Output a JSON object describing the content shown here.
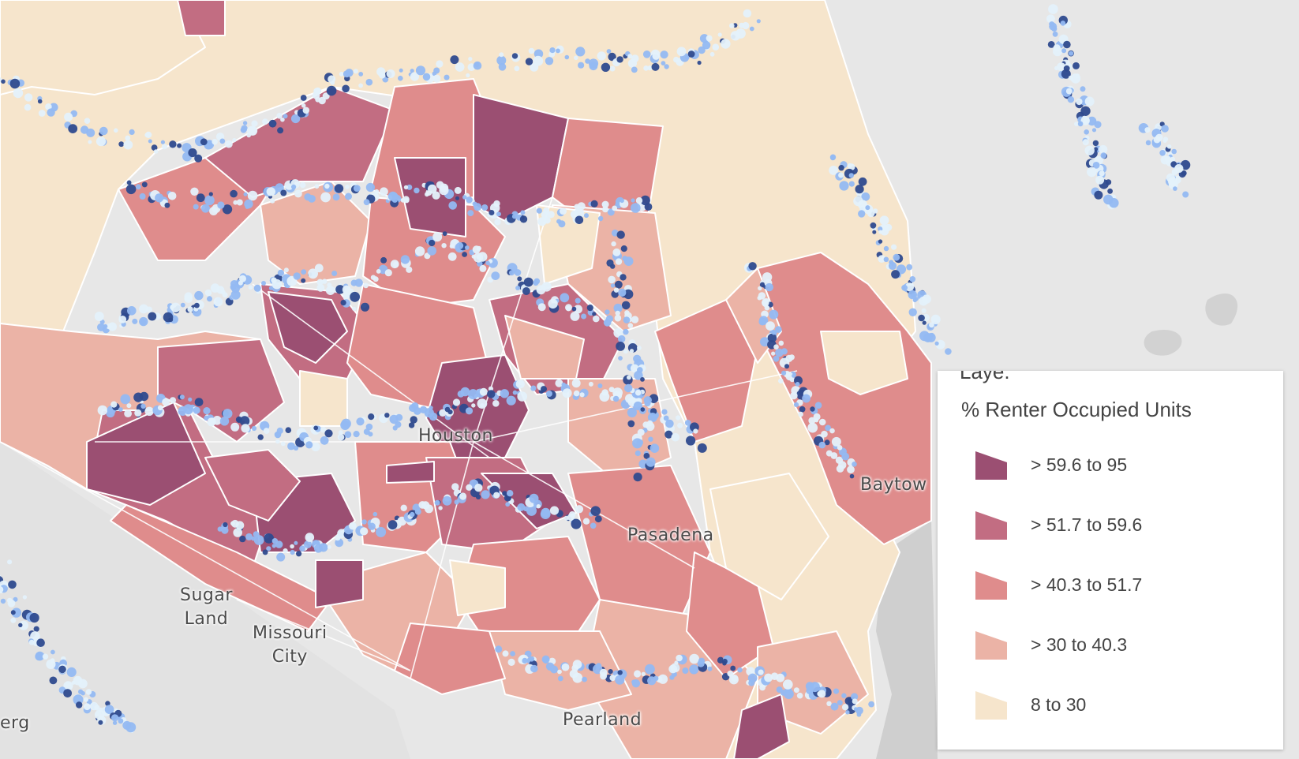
{
  "map": {
    "places": [
      {
        "name": "Houston"
      },
      {
        "name": "Pasadena"
      },
      {
        "name": "Sugar\nLand"
      },
      {
        "name": "Missouri\nCity"
      },
      {
        "name": "Pearland"
      },
      {
        "name": "Baytow"
      },
      {
        "name": "erg"
      }
    ]
  },
  "legend": {
    "header_partial": "Laye.",
    "title": "% Renter Occupied Units",
    "classes": [
      {
        "label": "> 59.6 to 95",
        "color": "#9b4f72"
      },
      {
        "label": "> 51.7 to 59.6",
        "color": "#c26d82"
      },
      {
        "label": "> 40.3 to 51.7",
        "color": "#df8c8c"
      },
      {
        "label": "> 30 to 40.3",
        "color": "#ebb3a6"
      },
      {
        "label": "8 to 30",
        "color": "#f6e5cc"
      }
    ]
  },
  "colors": {
    "basemap": "#e7e7e7",
    "water": "#cdcdcd",
    "flood_light": "#e4f1fb",
    "flood_mid": "#93b9f2",
    "flood_dark": "#2e4a8e"
  }
}
